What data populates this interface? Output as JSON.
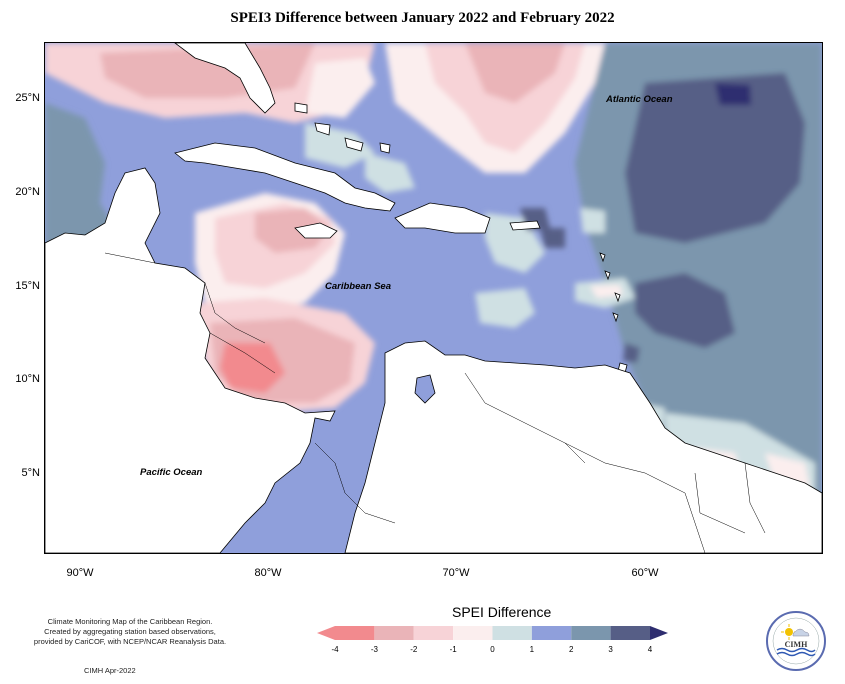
{
  "title": "SPEI3 Difference between January 2022 and February 2022",
  "lat_labels": [
    "25°N",
    "20°N",
    "15°N",
    "10°N",
    "5°N"
  ],
  "lon_labels": [
    "90°W",
    "80°W",
    "70°W",
    "60°W"
  ],
  "labels": {
    "atlantic": "Atlantic Ocean",
    "caribbean": "Caribbean Sea",
    "pacific": "Pacific Ocean"
  },
  "legend": {
    "title": "SPEI Difference",
    "ticks": [
      "-4",
      "-3",
      "-2",
      "-1",
      "0",
      "1",
      "2",
      "3",
      "4"
    ],
    "colors": [
      "#f28a8e",
      "#eab4b8",
      "#f7d3d7",
      "#fbeeee",
      "#cfe0e3",
      "#8f9fdb",
      "#7b96ad",
      "#565e86",
      "#2e2d6f"
    ]
  },
  "footnote": [
    "Climate Monitoring Map of the Caribbean Region.",
    "Created by aggregating station based observations,",
    "provided by CariCOF, with NCEP/NCAR Reanalysis Data."
  ],
  "credit": "CIMH Apr-2022",
  "logo": {
    "text": "CIMH",
    "icon": "cimh-sun-logo-icon"
  }
}
